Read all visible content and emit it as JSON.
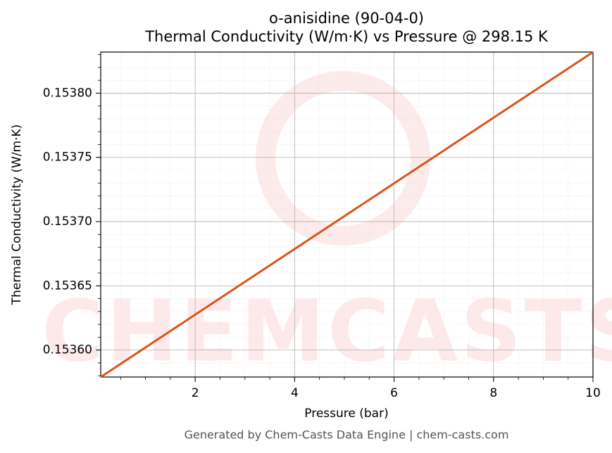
{
  "chart_data": {
    "type": "line",
    "title": "o-anisidine (90-04-0)",
    "subtitle": "Thermal Conductivity (W/m·K) vs Pressure @ 298.15 K",
    "x_label": "Pressure (bar)",
    "y_label": "Thermal Conductivity (W/m·K)",
    "x": [
      0.1,
      10
    ],
    "series": [
      {
        "name": "Thermal Conductivity",
        "color": "#d9541e",
        "values": [
          0.153579,
          0.153832
        ]
      }
    ],
    "xlim": [
      0.1,
      10
    ],
    "xticks": [
      2,
      4,
      6,
      8,
      10
    ],
    "ylim": [
      0.153579,
      0.153832
    ],
    "yticks": [
      {
        "value": 0.1536,
        "label": "0.15360"
      },
      {
        "value": 0.15365,
        "label": "0.15365"
      },
      {
        "value": 0.1537,
        "label": "0.15370"
      },
      {
        "value": 0.15375,
        "label": "0.15375"
      },
      {
        "value": 0.1538,
        "label": "0.15380"
      }
    ],
    "grid": true,
    "footer": "Generated by Chem-Casts Data Engine | chem-casts.com"
  }
}
